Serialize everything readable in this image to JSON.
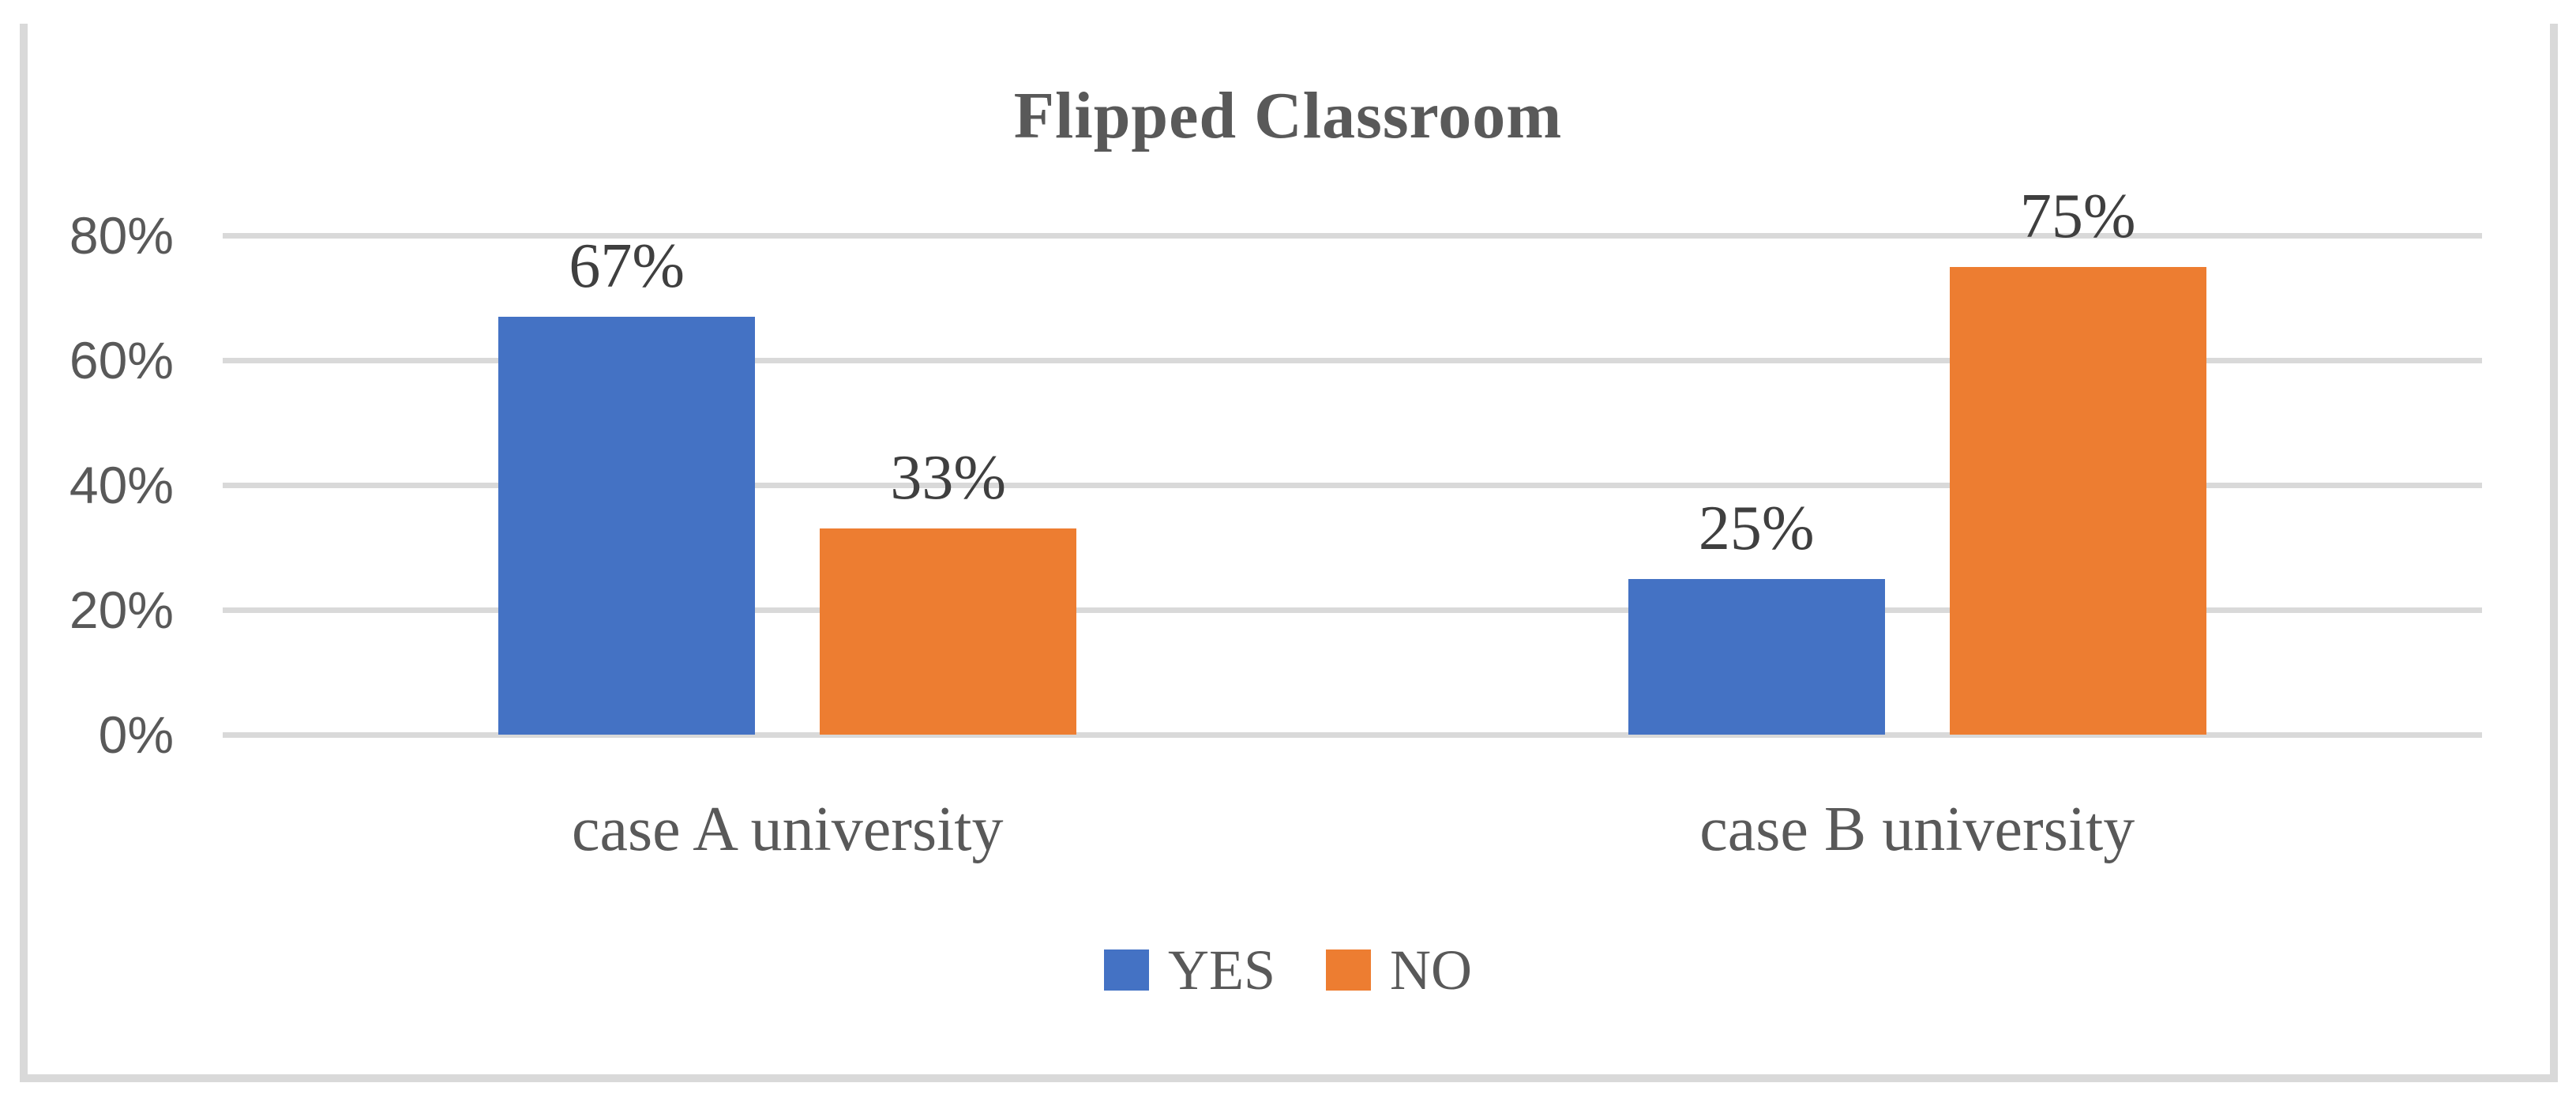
{
  "chart_data": {
    "type": "bar",
    "title": "Flipped Classroom",
    "categories": [
      "case A university",
      "case B university"
    ],
    "series": [
      {
        "name": "YES",
        "color": "#4472C4",
        "values": [
          67,
          25
        ],
        "labels": [
          "67%",
          "25%"
        ]
      },
      {
        "name": "NO",
        "color": "#ED7D31",
        "values": [
          33,
          75
        ],
        "labels": [
          "33%",
          "75%"
        ]
      }
    ],
    "y_axis": {
      "min": 0,
      "max": 80,
      "tick_values": [
        0,
        20,
        40,
        60,
        80
      ],
      "tick_labels": [
        "0%",
        "20%",
        "40%",
        "60%",
        "80%"
      ]
    },
    "grid": true,
    "legend_position": "bottom",
    "legend": {
      "items": [
        {
          "label": "YES",
          "color": "#4472C4"
        },
        {
          "label": "NO",
          "color": "#ED7D31"
        }
      ]
    },
    "colors": {
      "gridline": "#D9D9D9",
      "frame_border": "#D9D9D9",
      "title_text": "#595959",
      "axis_text": "#595959",
      "data_label_text": "#3F3F3F"
    }
  }
}
